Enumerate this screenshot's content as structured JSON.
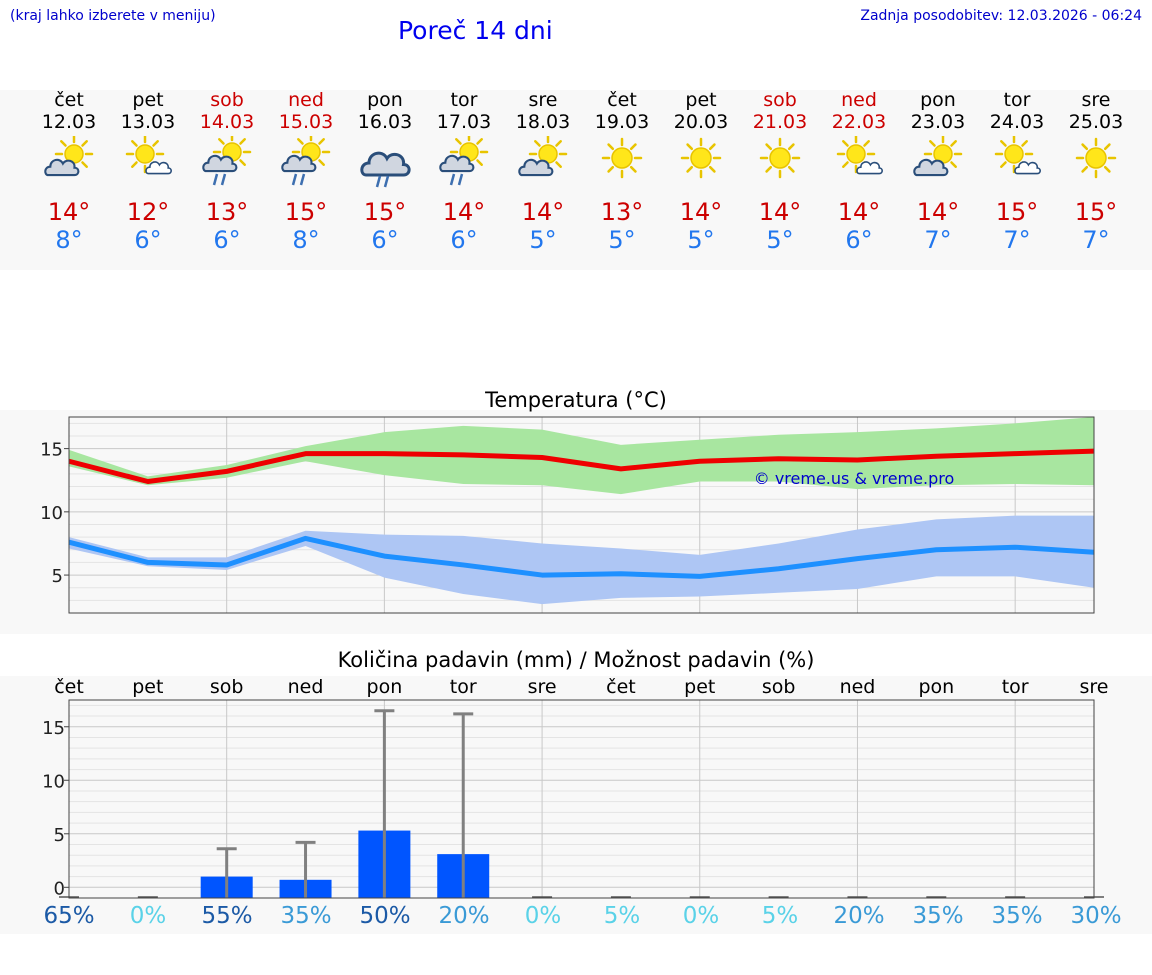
{
  "header": {
    "menu_note": "(kraj lahko izberete v meniju)",
    "title": "Poreč 14 dni",
    "updated": "Zadnja posodobitev: 12.03.2026 - 06:24"
  },
  "days": [
    {
      "name": "čet",
      "date": "12.03",
      "weekend": false,
      "icon": "sun-cloud-icon",
      "tmax": "14°",
      "tmin": "8°"
    },
    {
      "name": "pet",
      "date": "13.03",
      "weekend": false,
      "icon": "sun-small-cloud-icon",
      "tmax": "12°",
      "tmin": "6°"
    },
    {
      "name": "sob",
      "date": "14.03",
      "weekend": true,
      "icon": "sun-cloud-rain-icon",
      "tmax": "13°",
      "tmin": "6°"
    },
    {
      "name": "ned",
      "date": "15.03",
      "weekend": true,
      "icon": "sun-cloud-rain-icon",
      "tmax": "15°",
      "tmin": "8°"
    },
    {
      "name": "pon",
      "date": "16.03",
      "weekend": false,
      "icon": "cloud-rain-icon",
      "tmax": "15°",
      "tmin": "6°"
    },
    {
      "name": "tor",
      "date": "17.03",
      "weekend": false,
      "icon": "sun-cloud-rain-icon",
      "tmax": "14°",
      "tmin": "6°"
    },
    {
      "name": "sre",
      "date": "18.03",
      "weekend": false,
      "icon": "sun-cloud-icon",
      "tmax": "14°",
      "tmin": "5°"
    },
    {
      "name": "čet",
      "date": "19.03",
      "weekend": false,
      "icon": "sun-icon",
      "tmax": "13°",
      "tmin": "5°"
    },
    {
      "name": "pet",
      "date": "20.03",
      "weekend": false,
      "icon": "sun-icon",
      "tmax": "14°",
      "tmin": "5°"
    },
    {
      "name": "sob",
      "date": "21.03",
      "weekend": true,
      "icon": "sun-icon",
      "tmax": "14°",
      "tmin": "5°"
    },
    {
      "name": "ned",
      "date": "22.03",
      "weekend": true,
      "icon": "sun-small-cloud-icon",
      "tmax": "14°",
      "tmin": "6°"
    },
    {
      "name": "pon",
      "date": "23.03",
      "weekend": false,
      "icon": "sun-cloud-icon",
      "tmax": "14°",
      "tmin": "7°"
    },
    {
      "name": "tor",
      "date": "24.03",
      "weekend": false,
      "icon": "sun-small-cloud-icon",
      "tmax": "15°",
      "tmin": "7°"
    },
    {
      "name": "sre",
      "date": "25.03",
      "weekend": false,
      "icon": "sun-icon",
      "tmax": "15°",
      "tmin": "7°"
    }
  ],
  "colors": {
    "max": "#cc0000",
    "min": "#2277ee",
    "max_band": "#a8e6a0",
    "min_band": "#aec6f4",
    "max_line": "#ee0000",
    "min_line": "#1e90ff",
    "bar": "#0055ff",
    "whisker": "#808080"
  },
  "chart_data": [
    {
      "type": "line",
      "title": "Temperatura (°C)",
      "watermark": "© vreme.us & vreme.pro",
      "ylim": [
        2,
        17.5
      ],
      "yticks": [
        5,
        10,
        15
      ],
      "x": [
        0,
        1,
        2,
        3,
        4,
        5,
        6,
        7,
        8,
        9,
        10,
        11,
        12,
        13
      ],
      "series": [
        {
          "name": "max",
          "values": [
            14.0,
            12.4,
            13.2,
            14.6,
            14.6,
            14.5,
            14.3,
            13.4,
            14.0,
            14.2,
            14.1,
            14.4,
            14.6,
            14.8
          ]
        },
        {
          "name": "max_low",
          "values": [
            13.6,
            12.1,
            12.7,
            14.0,
            12.9,
            12.2,
            12.1,
            11.4,
            12.4,
            12.4,
            11.8,
            12.1,
            12.2,
            12.1
          ]
        },
        {
          "name": "max_high",
          "values": [
            14.9,
            12.8,
            13.7,
            15.2,
            16.3,
            16.8,
            16.5,
            15.3,
            15.7,
            16.1,
            16.3,
            16.6,
            17.0,
            17.5
          ]
        },
        {
          "name": "min",
          "values": [
            7.6,
            6.0,
            5.8,
            7.9,
            6.5,
            5.8,
            5.0,
            5.1,
            4.9,
            5.5,
            6.3,
            7.0,
            7.2,
            6.8
          ]
        },
        {
          "name": "min_low",
          "values": [
            7.1,
            5.7,
            5.4,
            7.3,
            4.8,
            3.5,
            2.7,
            3.2,
            3.3,
            3.6,
            3.9,
            4.9,
            4.9,
            4.0
          ]
        },
        {
          "name": "min_high",
          "values": [
            8.0,
            6.4,
            6.4,
            8.5,
            8.2,
            8.1,
            7.5,
            7.1,
            6.6,
            7.5,
            8.6,
            9.4,
            9.7,
            9.7
          ]
        }
      ]
    },
    {
      "type": "bar",
      "title": "Količina padavin (mm) / Možnost padavin (%)",
      "ylim": [
        -1,
        17.5
      ],
      "yticks": [
        0,
        5,
        10,
        15
      ],
      "categories": [
        "čet",
        "pet",
        "sob",
        "ned",
        "pon",
        "tor",
        "sre",
        "čet",
        "pet",
        "sob",
        "ned",
        "pon",
        "tor",
        "sre"
      ],
      "values": [
        0,
        0,
        1.0,
        0.7,
        5.3,
        3.1,
        0,
        0,
        0,
        0,
        0,
        0,
        0,
        0
      ],
      "upper": [
        0,
        0,
        3.6,
        4.2,
        16.5,
        16.2,
        0,
        0,
        0,
        0,
        0,
        0,
        0,
        0
      ],
      "probability": [
        "65%",
        "0%",
        "55%",
        "35%",
        "50%",
        "20%",
        "0%",
        "5%",
        "0%",
        "5%",
        "20%",
        "35%",
        "35%",
        "30%"
      ],
      "probability_colors": [
        "#1c5aa6",
        "#5ad2e8",
        "#1c5aa6",
        "#3a9ad6",
        "#1c5aa6",
        "#3a9ad6",
        "#5ad2e8",
        "#5ad2e8",
        "#5ad2e8",
        "#5ad2e8",
        "#3a9ad6",
        "#3a9ad6",
        "#3a9ad6",
        "#3a9ad6"
      ]
    }
  ]
}
